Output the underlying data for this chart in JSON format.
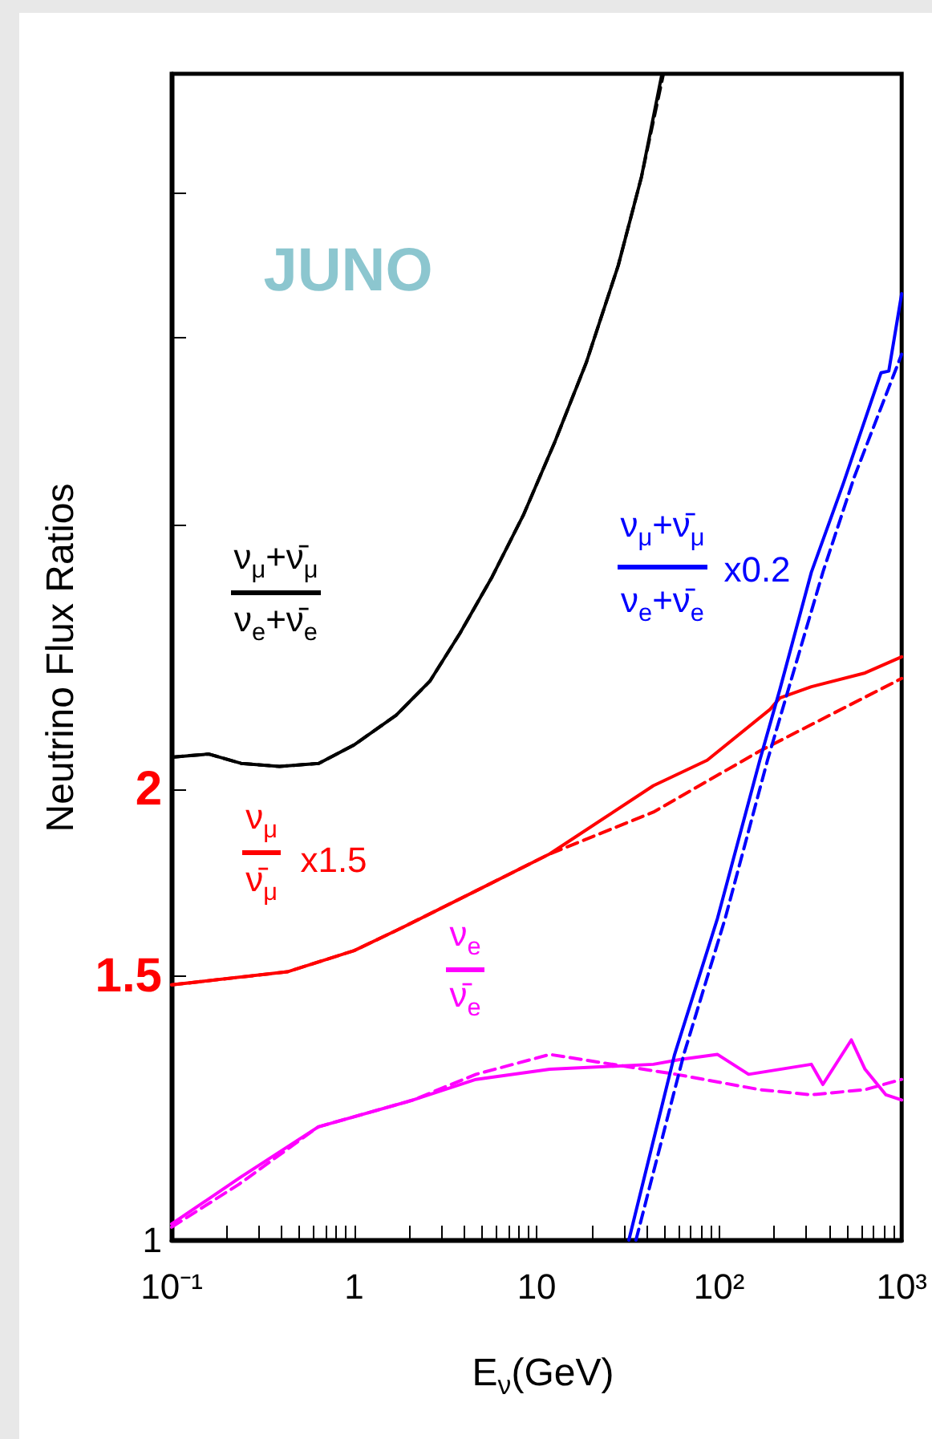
{
  "chart_data": {
    "type": "line",
    "xlabel": "E$_{ν}$(GeV)",
    "ylabel": "Neutrino Flux Ratios",
    "log": "xy",
    "grid": false,
    "marker": "none",
    "xlim": [
      0.1,
      1000
    ],
    "xticks": [
      {
        "value": 0.1,
        "label": "10⁻¹"
      },
      1,
      10,
      {
        "value": 100,
        "label": "10²"
      },
      {
        "value": 1000,
        "label": "10³"
      }
    ],
    "ylim": [
      1,
      6
    ],
    "yticks": [
      1,
      1.5,
      2,
      {
        "value": 3,
        "label": null
      },
      {
        "value": 4,
        "label": null
      },
      {
        "value": 5,
        "label": null
      }
    ],
    "series": [
      {
        "color": "#000000",
        "line_style": "solid",
        "x": [
          0.1,
          0.16,
          0.24,
          0.39,
          0.64,
          1,
          1.7,
          2.6,
          3.8,
          5.7,
          8.5,
          12.6,
          18.7,
          28,
          37.5,
          48.6
        ],
        "values": [
          2.1,
          2.11,
          2.08,
          2.07,
          2.08,
          2.14,
          2.24,
          2.36,
          2.54,
          2.77,
          3.05,
          3.41,
          3.85,
          4.47,
          5.12,
          6.0
        ]
      },
      {
        "color": "#000000",
        "line_style": "dashed",
        "x": [
          0.1,
          0.16,
          0.24,
          0.39,
          0.64,
          1,
          1.7,
          2.6,
          3.8,
          5.7,
          8.5,
          12.6,
          18.7,
          28,
          37.5,
          49.5
        ],
        "values": [
          2.1,
          2.11,
          2.08,
          2.07,
          2.08,
          2.14,
          2.24,
          2.36,
          2.54,
          2.77,
          3.05,
          3.41,
          3.85,
          4.47,
          5.12,
          6.0
        ]
      },
      {
        "color": "#ff0000",
        "line_style": "solid",
        "x": [
          0.1,
          0.43,
          1,
          1.72,
          4.65,
          11.8,
          43.6,
          86,
          190,
          215,
          320,
          630,
          1000
        ],
        "values": [
          1.48,
          1.51,
          1.56,
          1.61,
          1.71,
          1.81,
          2.01,
          2.09,
          2.26,
          2.3,
          2.34,
          2.39,
          2.45
        ]
      },
      {
        "color": "#ff0000",
        "line_style": "dashed",
        "x": [
          0.1,
          0.43,
          1,
          1.72,
          4.65,
          11.8,
          43.6,
          167,
          1000
        ],
        "values": [
          1.48,
          1.51,
          1.56,
          1.61,
          1.71,
          1.81,
          1.93,
          2.12,
          2.37
        ]
      },
      {
        "color": "#ff00ff",
        "line_style": "solid",
        "x": [
          0.1,
          0.235,
          0.636,
          2.1,
          4.65,
          11.8,
          43.6,
          61.5,
          98,
          145,
          320,
          370,
          530,
          630,
          820,
          1000
        ],
        "values": [
          1.025,
          1.1,
          1.19,
          1.24,
          1.28,
          1.3,
          1.31,
          1.32,
          1.33,
          1.29,
          1.31,
          1.27,
          1.36,
          1.3,
          1.25,
          1.24
        ]
      },
      {
        "color": "#ff00ff",
        "line_style": "dashed",
        "x": [
          0.1,
          0.235,
          0.636,
          2.1,
          4.65,
          11.8,
          58,
          167,
          320,
          630,
          1000
        ],
        "values": [
          1.02,
          1.09,
          1.19,
          1.24,
          1.29,
          1.33,
          1.29,
          1.26,
          1.25,
          1.26,
          1.28
        ]
      },
      {
        "color": "#0000ff",
        "line_style": "solid",
        "x": [
          32,
          57,
          98,
          167,
          215,
          320,
          480,
          770,
          850,
          1000
        ],
        "values": [
          1.0,
          1.33,
          1.64,
          2.09,
          2.33,
          2.79,
          3.2,
          3.79,
          3.8,
          4.28
        ]
      },
      {
        "color": "#0000ff",
        "line_style": "dashed",
        "x": [
          35,
          64,
          108,
          184,
          370,
          550,
          1000
        ],
        "values": [
          1.0,
          1.33,
          1.64,
          2.09,
          2.79,
          3.23,
          3.9
        ]
      }
    ],
    "annotations": [
      "ν$_{μ}$+ν̄$_{μ}$",
      "ν$_{e}$+ν̄$_{e}$",
      "ν$_{μ}$",
      "ν̄$_{μ}$",
      "x1.5",
      "ν$_{e}$",
      "ν̄$_{e}$",
      "ν$_{μ}$+ν̄$_{μ}$",
      "ν$_{e}$+ν̄$_{e}$",
      "x0.2",
      "JUNO"
    ]
  }
}
